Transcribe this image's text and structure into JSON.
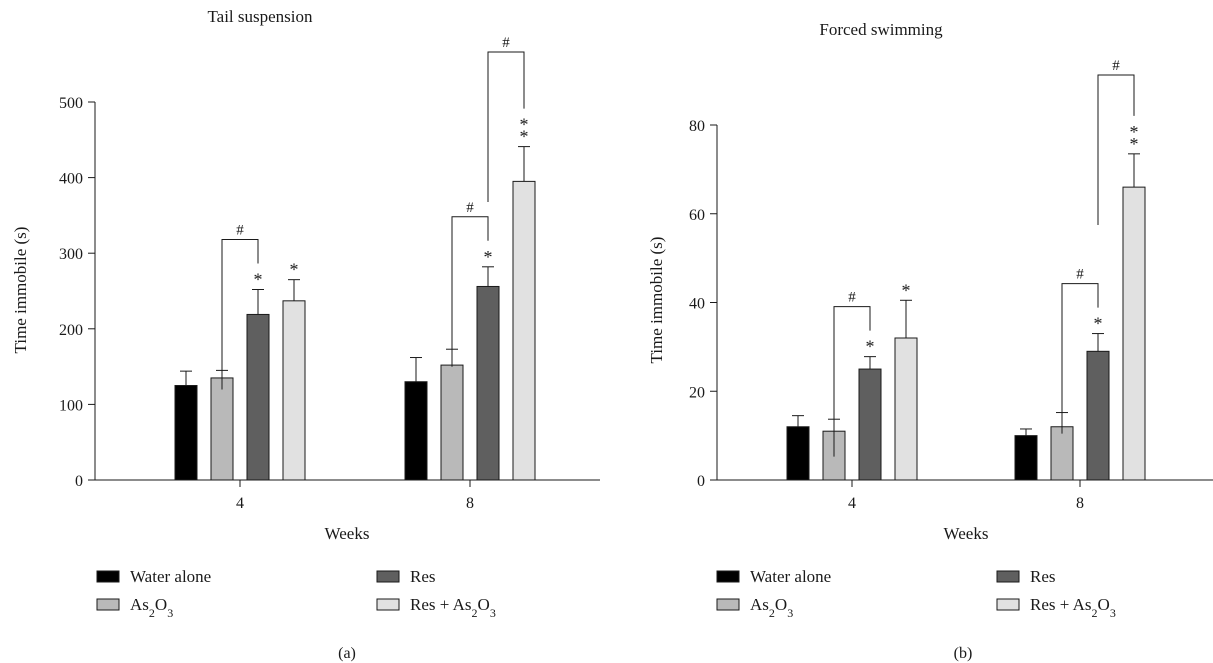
{
  "chart_data": [
    {
      "type": "bar",
      "title": "Tail suspension",
      "panel_label": "(a)",
      "xlabel": "Weeks",
      "ylabel": "Time immobile (s)",
      "ylim": [
        0,
        500
      ],
      "yticks": [
        "0",
        "100",
        "200",
        "300",
        "400",
        "500"
      ],
      "categories": [
        "4",
        "8"
      ],
      "series": [
        {
          "name": "Water alone",
          "color": "#000000",
          "values": [
            125,
            130
          ],
          "errors": [
            19,
            32
          ],
          "stars": [
            "",
            ""
          ]
        },
        {
          "name": "As2O3",
          "color": "#b9b9b9",
          "values": [
            135,
            152
          ],
          "errors": [
            10,
            21
          ],
          "stars": [
            "",
            ""
          ]
        },
        {
          "name": "Res",
          "color": "#5f5f5f",
          "values": [
            219,
            256
          ],
          "errors": [
            33,
            26
          ],
          "stars": [
            "*",
            "*"
          ]
        },
        {
          "name": "Res + As2O3",
          "color": "#e1e1e1",
          "values": [
            237,
            395
          ],
          "errors": [
            28,
            46
          ],
          "stars": [
            "*",
            "**"
          ]
        }
      ],
      "brackets": [
        {
          "category": 0,
          "from_series": 1,
          "to_series": 2,
          "label": "#"
        },
        {
          "category": 1,
          "from_series": 1,
          "to_series": 2,
          "label": "#"
        },
        {
          "category": 1,
          "from_series": 2,
          "to_series": 3,
          "label": "#"
        }
      ]
    },
    {
      "type": "bar",
      "title": "Forced swimming",
      "panel_label": "(b)",
      "xlabel": "Weeks",
      "ylabel": "Time immobile (s)",
      "ylim": [
        0,
        80
      ],
      "yticks": [
        "0",
        "20",
        "40",
        "60",
        "80"
      ],
      "categories": [
        "4",
        "8"
      ],
      "series": [
        {
          "name": "Water alone",
          "color": "#000000",
          "values": [
            12,
            10
          ],
          "errors": [
            2.5,
            1.5
          ],
          "stars": [
            "",
            ""
          ]
        },
        {
          "name": "As2O3",
          "color": "#b9b9b9",
          "values": [
            11,
            12
          ],
          "errors": [
            2.7,
            3.2
          ],
          "stars": [
            "",
            ""
          ]
        },
        {
          "name": "Res",
          "color": "#5f5f5f",
          "values": [
            25,
            29
          ],
          "errors": [
            2.8,
            4
          ],
          "stars": [
            "*",
            "*"
          ]
        },
        {
          "name": "Res + As2O3",
          "color": "#e1e1e1",
          "values": [
            32,
            66
          ],
          "errors": [
            8.5,
            7.5
          ],
          "stars": [
            "*",
            "**"
          ]
        }
      ],
      "brackets": [
        {
          "category": 0,
          "from_series": 1,
          "to_series": 2,
          "label": "#"
        },
        {
          "category": 1,
          "from_series": 1,
          "to_series": 2,
          "label": "#"
        },
        {
          "category": 1,
          "from_series": 2,
          "to_series": 3,
          "label": "#"
        }
      ]
    }
  ],
  "legend": [
    {
      "main": "Water alone",
      "sub": "",
      "tail": "",
      "color": "#000000"
    },
    {
      "main": "Res",
      "sub": "",
      "tail": "",
      "color": "#5f5f5f"
    },
    {
      "main": "As",
      "sub": "2",
      "tail": "O",
      "sub2": "3",
      "color": "#b9b9b9"
    },
    {
      "main": "Res + As",
      "sub": "2",
      "tail": "O",
      "sub2": "3",
      "color": "#e1e1e1"
    }
  ]
}
